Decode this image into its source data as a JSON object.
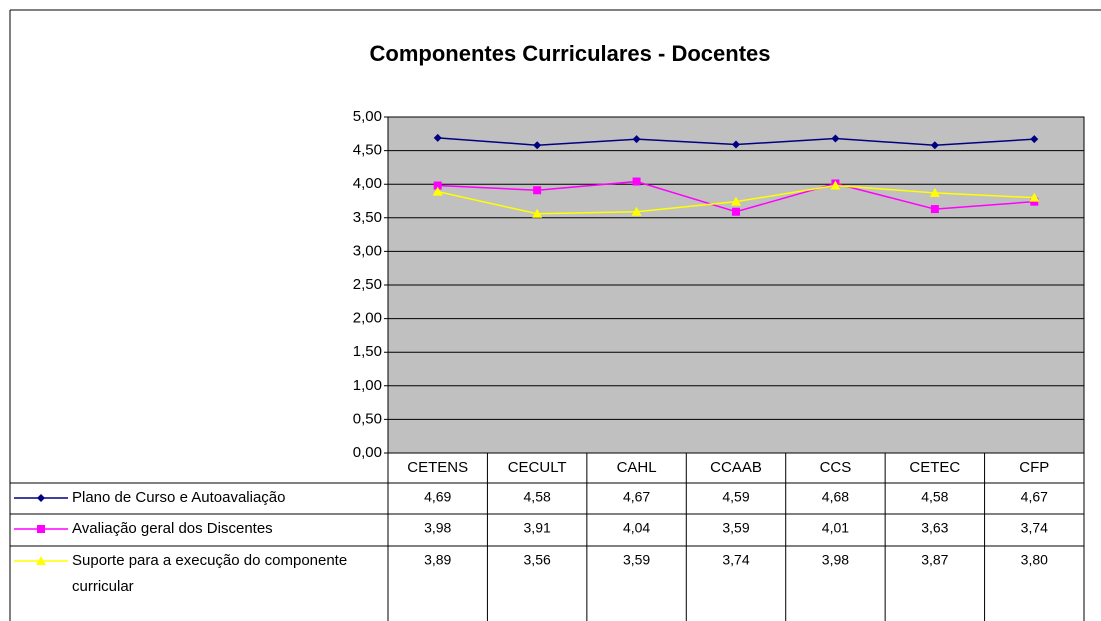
{
  "chart_data": {
    "type": "line",
    "title": "Componentes Curriculares - Docentes",
    "categories": [
      "CETENS",
      "CECULT",
      "CAHL",
      "CCAAB",
      "CCS",
      "CETEC",
      "CFP"
    ],
    "series": [
      {
        "name": "Plano de Curso e Autoavaliação",
        "color": "#000080",
        "marker": "diamond",
        "values": [
          4.69,
          4.58,
          4.67,
          4.59,
          4.68,
          4.58,
          4.67
        ],
        "value_labels": [
          "4,69",
          "4,58",
          "4,67",
          "4,59",
          "4,68",
          "4,58",
          "4,67"
        ]
      },
      {
        "name": "Avaliação geral dos Discentes",
        "color": "#ff00ff",
        "marker": "square",
        "values": [
          3.98,
          3.91,
          4.04,
          3.59,
          4.01,
          3.63,
          3.74
        ],
        "value_labels": [
          "3,98",
          "3,91",
          "4,04",
          "3,59",
          "4,01",
          "3,63",
          "3,74"
        ]
      },
      {
        "name": "Suporte para a execução do componente curricular",
        "color": "#ffff00",
        "marker": "triangle",
        "values": [
          3.89,
          3.56,
          3.59,
          3.74,
          3.98,
          3.87,
          3.8
        ],
        "value_labels": [
          "3,89",
          "3,56",
          "3,59",
          "3,74",
          "3,98",
          "3,87",
          "3,80"
        ]
      }
    ],
    "ylim": [
      0,
      5
    ],
    "yticks": [
      {
        "value": 0,
        "label": "0,00"
      },
      {
        "value": 0.5,
        "label": "0,50"
      },
      {
        "value": 1,
        "label": "1,00"
      },
      {
        "value": 1.5,
        "label": "1,50"
      },
      {
        "value": 2,
        "label": "2,00"
      },
      {
        "value": 2.5,
        "label": "2,50"
      },
      {
        "value": 3,
        "label": "3,00"
      },
      {
        "value": 3.5,
        "label": "3,50"
      },
      {
        "value": 4,
        "label": "4,00"
      },
      {
        "value": 4.5,
        "label": "4,50"
      },
      {
        "value": 5,
        "label": "5,00"
      }
    ],
    "grid": true,
    "plot_background": "#c0c0c0"
  }
}
